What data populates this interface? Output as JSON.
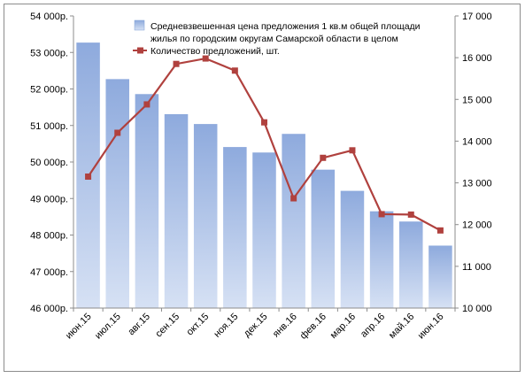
{
  "chart_data": {
    "type": "bar",
    "categories": [
      "июн.15",
      "июл.15",
      "авг.15",
      "сен.15",
      "окт.15",
      "ноя.15",
      "дек.15",
      "янв.16",
      "фев.16",
      "мар.16",
      "апр.16",
      "май.16",
      "июн.16"
    ],
    "y_left": {
      "min": 46000,
      "max": 54000,
      "step": 1000,
      "tick_labels": [
        "46 000р.",
        "47 000р.",
        "48 000р.",
        "49 000р.",
        "50 000р.",
        "51 000р.",
        "52 000р.",
        "53 000р.",
        "54 000р."
      ]
    },
    "y_right": {
      "min": 10000,
      "max": 17000,
      "step": 1000,
      "tick_labels": [
        "10 000",
        "11 000",
        "12 000",
        "13 000",
        "14 000",
        "15 000",
        "16 000",
        "17 000"
      ]
    },
    "series": [
      {
        "name": "Средневзвешенная цена предложения 1 кв.м общей площади жилья по городским округам Самарской области в целом",
        "type": "bar",
        "axis": "left",
        "color": "#9db6e4",
        "values": [
          53270,
          52270,
          51860,
          51310,
          51040,
          50410,
          50260,
          50770,
          49790,
          49210,
          48650,
          48370,
          47710
        ]
      },
      {
        "name": "Количество предложений, шт.",
        "type": "line",
        "axis": "right",
        "color": "#b0413e",
        "values": [
          13150,
          14200,
          14880,
          15850,
          15980,
          15690,
          14450,
          12630,
          13600,
          13780,
          12250,
          12240,
          11860
        ]
      }
    ],
    "legend": {
      "position": "top-right",
      "bar_label_line1": "Средневзвешенная цена предложения 1 кв.м общей площади",
      "bar_label_line2": "жилья по городским округам Самарской области в целом",
      "line_label": "Количество предложений, шт."
    },
    "grid": false,
    "title": "",
    "xlabel": "",
    "ylabel": ""
  }
}
